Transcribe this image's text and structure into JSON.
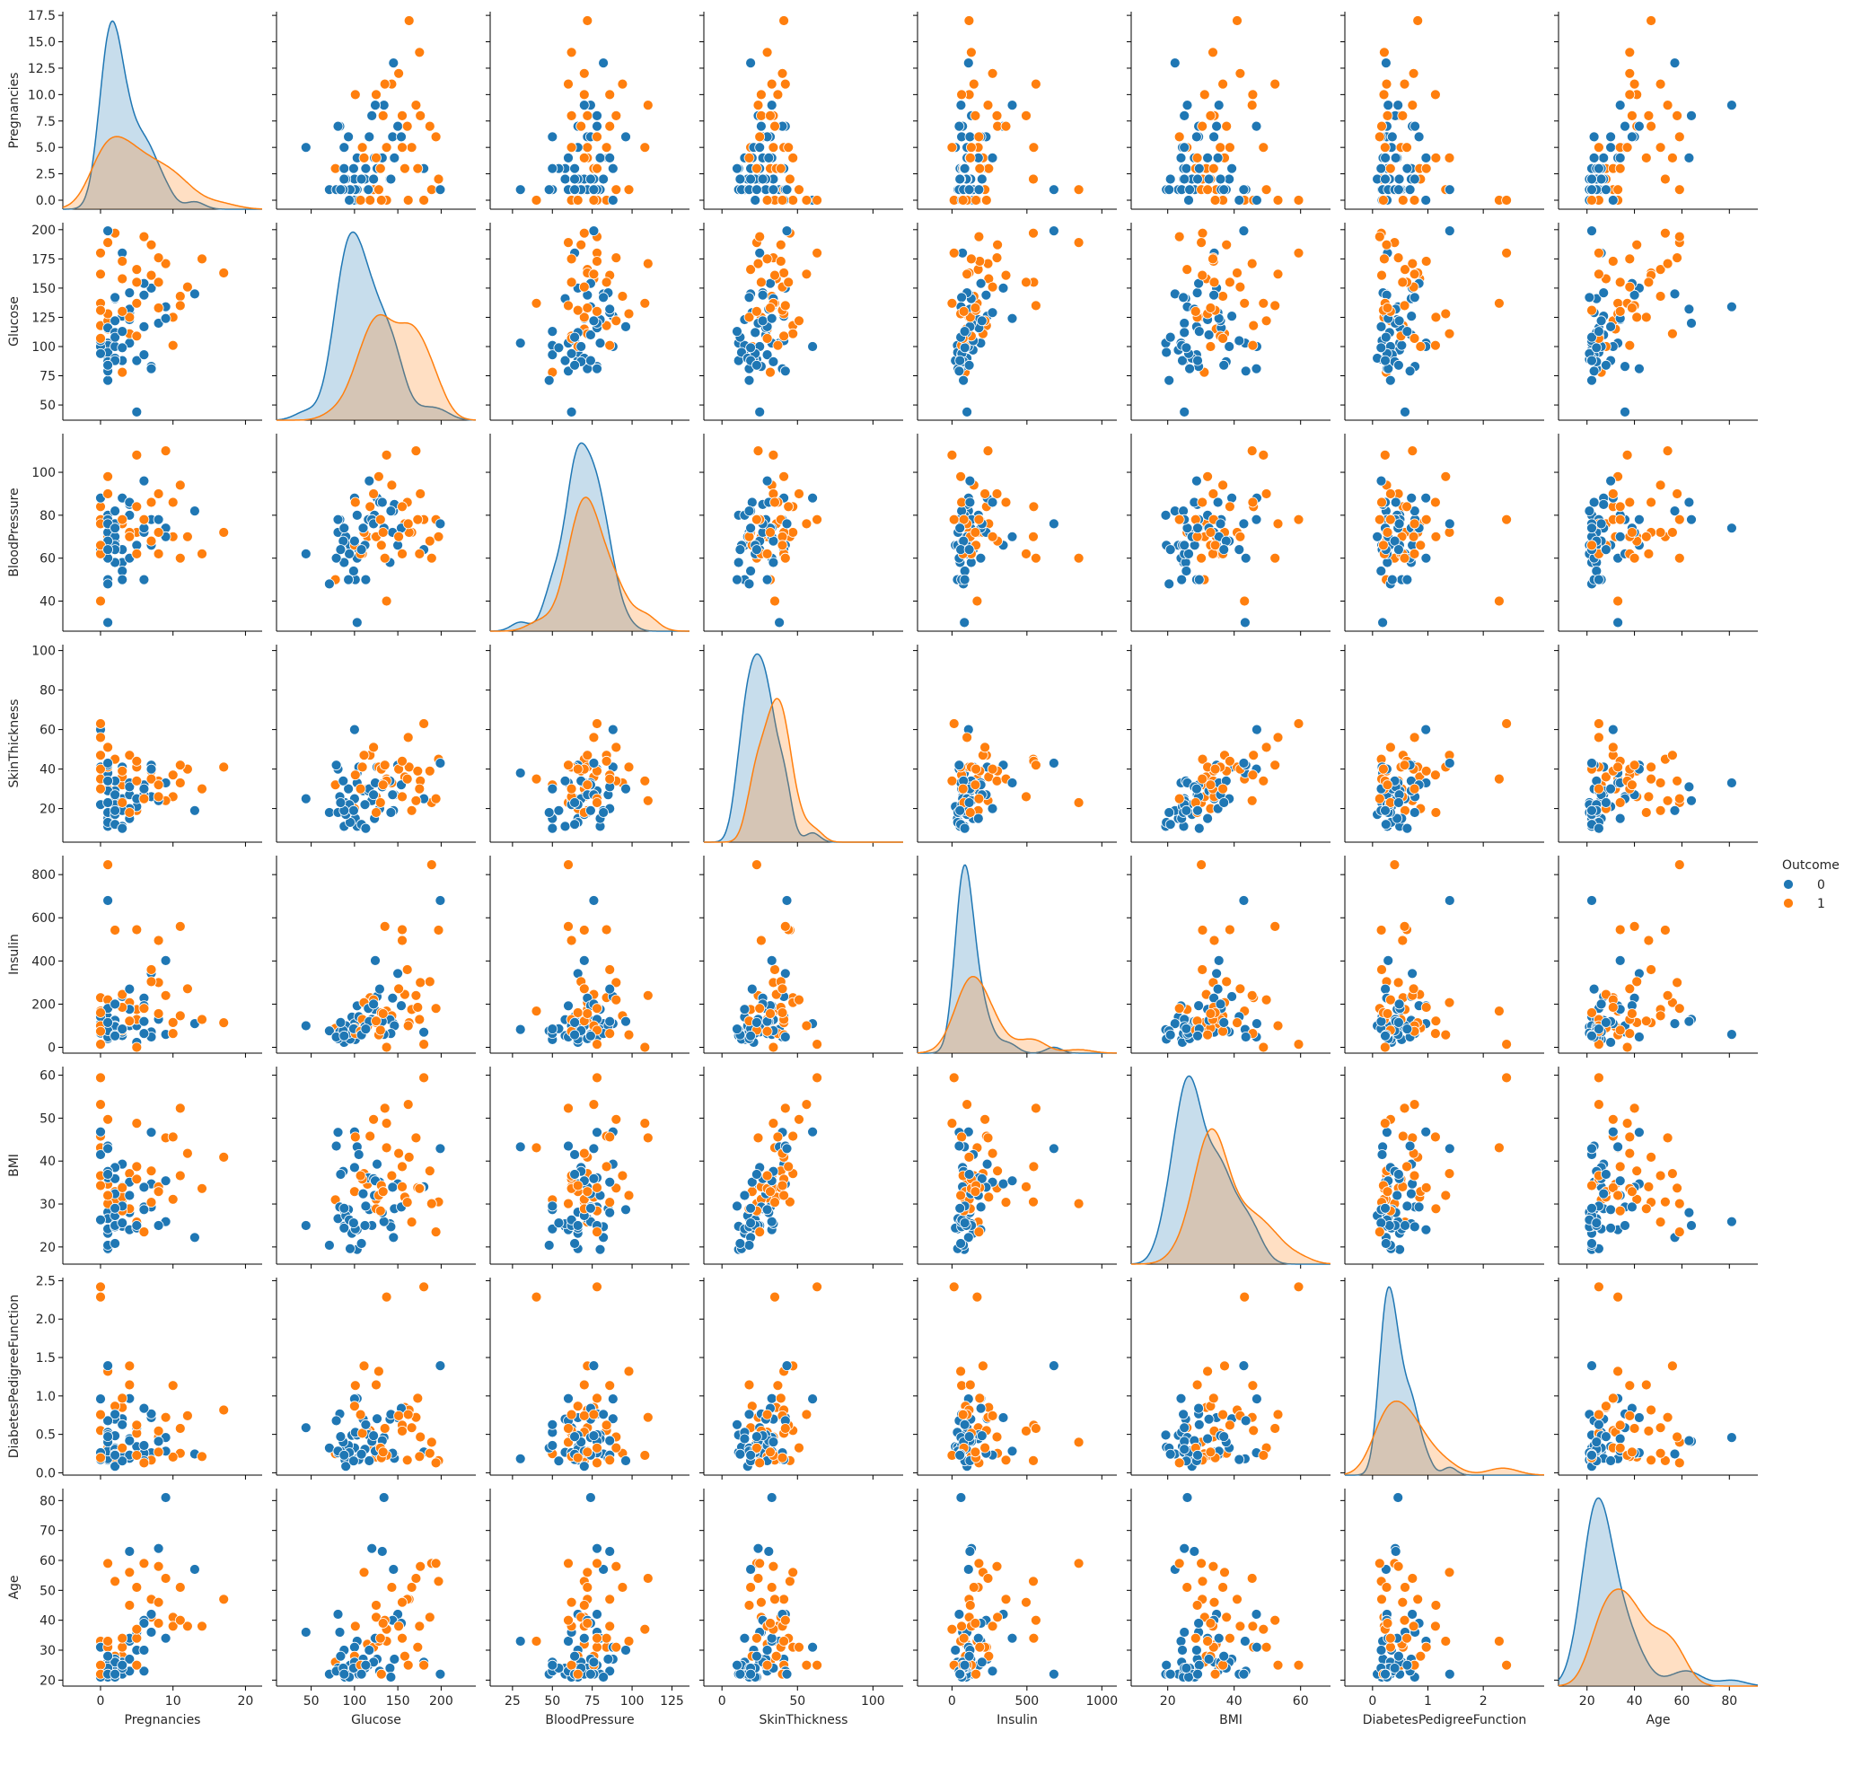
{
  "chart_data": {
    "type": "scatter",
    "title": "",
    "subtype": "pairplot",
    "variables": [
      "Pregnancies",
      "Glucose",
      "BloodPressure",
      "SkinThickness",
      "Insulin",
      "BMI",
      "DiabetesPedigreeFunction",
      "Age"
    ],
    "hue": "Outcome",
    "legend": {
      "title": "Outcome",
      "labels": [
        "0",
        "1"
      ],
      "placement": "center-right"
    },
    "colors": {
      "0": "#1f77b4",
      "1": "#ff7f0e"
    },
    "diagonal": "kde",
    "x_limits": {
      "Pregnancies": [
        -5.2,
        22.3
      ],
      "Glucose": [
        10,
        240
      ],
      "BloodPressure": [
        11,
        136
      ],
      "SkinThickness": [
        -12,
        120
      ],
      "Insulin": [
        -230,
        1100
      ],
      "BMI": [
        9,
        69
      ],
      "DiabetesPedigreeFunction": [
        -0.5,
        3.1
      ],
      "Age": [
        8,
        92
      ]
    },
    "y_limits": {
      "Pregnancies": [
        -0.85,
        17.85
      ],
      "Glucose": [
        37,
        206
      ],
      "BloodPressure": [
        26,
        118
      ],
      "SkinThickness": [
        3,
        103
      ],
      "Insulin": [
        -27,
        888
      ],
      "BMI": [
        16,
        62
      ],
      "DiabetesPedigreeFunction": [
        -0.03,
        2.54
      ],
      "Age": [
        18,
        84
      ]
    },
    "x_ticks": {
      "Pregnancies": [
        "0",
        "10",
        "20"
      ],
      "Glucose": [
        "50",
        "100",
        "150",
        "200"
      ],
      "BloodPressure": [
        "25",
        "50",
        "75",
        "100",
        "125"
      ],
      "SkinThickness": [
        "0",
        "50",
        "100"
      ],
      "Insulin": [
        "0",
        "500",
        "1000"
      ],
      "BMI": [
        "20",
        "40",
        "60"
      ],
      "DiabetesPedigreeFunction": [
        "0",
        "1",
        "2"
      ],
      "Age": [
        "20",
        "40",
        "60",
        "80"
      ]
    },
    "y_ticks": {
      "Pregnancies": [
        "0.0",
        "2.5",
        "5.0",
        "7.5",
        "10.0",
        "12.5",
        "15.0",
        "17.5"
      ],
      "Glucose": [
        "50",
        "75",
        "100",
        "125",
        "150",
        "175",
        "200"
      ],
      "BloodPressure": [
        "40",
        "60",
        "80",
        "100"
      ],
      "SkinThickness": [
        "20",
        "40",
        "60",
        "80",
        "100"
      ],
      "Insulin": [
        "0",
        "200",
        "400",
        "600",
        "800"
      ],
      "BMI": [
        "20",
        "30",
        "40",
        "50",
        "60"
      ],
      "DiabetesPedigreeFunction": [
        "0.0",
        "0.5",
        "1.0",
        "1.5",
        "2.0",
        "2.5"
      ],
      "Age": [
        "20",
        "30",
        "40",
        "50",
        "60",
        "70",
        "80"
      ]
    },
    "columns": [
      "Pregnancies",
      "Glucose",
      "BloodPressure",
      "SkinThickness",
      "Insulin",
      "BMI",
      "DiabetesPedigreeFunction",
      "Age",
      "Outcome"
    ],
    "rows": [
      [
        1,
        89,
        66,
        23,
        94,
        28.1,
        0.167,
        21,
        0
      ],
      [
        0,
        137,
        40,
        35,
        168,
        43.1,
        2.288,
        33,
        1
      ],
      [
        3,
        78,
        50,
        32,
        88,
        31.0,
        0.248,
        26,
        1
      ],
      [
        2,
        197,
        70,
        45,
        543,
        30.5,
        0.158,
        53,
        1
      ],
      [
        1,
        189,
        60,
        23,
        846,
        30.1,
        0.398,
        59,
        1
      ],
      [
        5,
        166,
        72,
        19,
        175,
        25.8,
        0.587,
        51,
        1
      ],
      [
        0,
        118,
        84,
        47,
        230,
        45.8,
        0.551,
        31,
        1
      ],
      [
        1,
        103,
        30,
        38,
        83,
        43.3,
        0.183,
        33,
        0
      ],
      [
        1,
        115,
        70,
        30,
        96,
        34.6,
        0.529,
        32,
        1
      ],
      [
        3,
        126,
        88,
        41,
        235,
        39.3,
        0.704,
        27,
        0
      ],
      [
        11,
        143,
        94,
        33,
        146,
        36.6,
        0.254,
        51,
        1
      ],
      [
        10,
        125,
        70,
        26,
        115,
        31.1,
        0.205,
        41,
        1
      ],
      [
        1,
        97,
        66,
        15,
        140,
        23.2,
        0.487,
        22,
        0
      ],
      [
        13,
        145,
        82,
        19,
        110,
        22.2,
        0.245,
        57,
        0
      ],
      [
        3,
        158,
        76,
        36,
        245,
        31.6,
        0.851,
        28,
        1
      ],
      [
        3,
        88,
        58,
        11,
        54,
        24.8,
        0.267,
        22,
        0
      ],
      [
        4,
        103,
        60,
        33,
        192,
        24.0,
        0.966,
        33,
        0
      ],
      [
        4,
        111,
        72,
        47,
        207,
        37.1,
        1.39,
        56,
        1
      ],
      [
        3,
        180,
        64,
        25,
        70,
        34.0,
        0.271,
        26,
        0
      ],
      [
        9,
        171,
        110,
        24,
        240,
        45.4,
        0.721,
        54,
        1
      ],
      [
        1,
        103,
        80,
        11,
        82,
        19.4,
        0.491,
        22,
        0
      ],
      [
        1,
        101,
        50,
        15,
        36,
        24.2,
        0.526,
        26,
        0
      ],
      [
        5,
        88,
        66,
        21,
        23,
        24.4,
        0.342,
        30,
        0
      ],
      [
        8,
        176,
        90,
        34,
        300,
        33.7,
        0.467,
        58,
        1
      ],
      [
        7,
        150,
        66,
        42,
        342,
        34.7,
        0.718,
        42,
        0
      ],
      [
        7,
        187,
        68,
        39,
        304,
        37.7,
        0.254,
        41,
        1
      ],
      [
        0,
        100,
        88,
        60,
        110,
        46.8,
        0.962,
        31,
        0
      ],
      [
        0,
        105,
        64,
        41,
        142,
        41.5,
        0.173,
        22,
        0
      ],
      [
        2,
        141,
        58,
        34,
        128,
        25.4,
        0.699,
        24,
        0
      ],
      [
        1,
        95,
        66,
        13,
        38,
        19.6,
        0.334,
        25,
        0
      ],
      [
        4,
        146,
        85,
        27,
        100,
        28.9,
        0.189,
        27,
        0
      ],
      [
        2,
        100,
        66,
        20,
        90,
        32.9,
        0.867,
        28,
        1
      ],
      [
        4,
        129,
        86,
        20,
        270,
        35.1,
        0.231,
        23,
        0
      ],
      [
        7,
        83,
        78,
        26,
        71,
        29.3,
        0.767,
        36,
        0
      ],
      [
        2,
        110,
        74,
        29,
        125,
        32.4,
        0.698,
        27,
        0
      ],
      [
        2,
        100,
        68,
        25,
        71,
        38.5,
        0.324,
        26,
        0
      ],
      [
        4,
        123,
        80,
        15,
        176,
        32.0,
        0.443,
        34,
        0
      ],
      [
        7,
        81,
        78,
        40,
        48,
        46.7,
        0.261,
        42,
        0
      ],
      [
        2,
        142,
        82,
        18,
        64,
        24.7,
        0.761,
        21,
        0
      ],
      [
        6,
        144,
        72,
        27,
        228,
        33.9,
        0.255,
        40,
        0
      ],
      [
        1,
        71,
        48,
        18,
        76,
        20.4,
        0.323,
        22,
        0
      ],
      [
        6,
        93,
        50,
        30,
        64,
        28.7,
        0.356,
        23,
        0
      ],
      [
        1,
        122,
        90,
        51,
        220,
        49.7,
        0.325,
        31,
        1
      ],
      [
        1,
        81,
        72,
        18,
        40,
        26.6,
        0.283,
        24,
        0
      ],
      [
        9,
        134,
        74,
        33,
        60,
        25.9,
        0.46,
        81,
        0
      ],
      [
        17,
        163,
        72,
        41,
        114,
        40.9,
        0.817,
        47,
        1
      ],
      [
        0,
        180,
        78,
        63,
        14,
        59.4,
        2.42,
        25,
        1
      ],
      [
        5,
        44,
        62,
        25,
        100,
        25.0,
        0.587,
        36,
        0
      ],
      [
        2,
        90,
        70,
        17,
        100,
        27.3,
        0.085,
        22,
        0
      ],
      [
        0,
        94,
        62,
        22,
        66,
        26.3,
        0.262,
        21,
        0
      ],
      [
        1,
        116,
        78,
        29,
        180,
        36.1,
        0.496,
        25,
        0
      ],
      [
        5,
        109,
        62,
        41,
        129,
        35.8,
        0.514,
        25,
        1
      ],
      [
        8,
        120,
        78,
        24,
        130,
        25.0,
        0.409,
        64,
        0
      ],
      [
        10,
        101,
        86,
        37,
        64,
        45.6,
        1.136,
        38,
        1
      ],
      [
        6,
        154,
        74,
        32,
        193,
        29.3,
        0.839,
        39,
        0
      ],
      [
        3,
        173,
        78,
        39,
        185,
        33.8,
        0.97,
        31,
        1
      ],
      [
        12,
        151,
        70,
        40,
        271,
        41.8,
        0.742,
        38,
        1
      ],
      [
        2,
        112,
        66,
        22,
        96,
        25.0,
        0.307,
        24,
        0
      ],
      [
        4,
        132,
        86,
        31,
        120,
        28.0,
        0.419,
        63,
        0
      ],
      [
        7,
        161,
        86,
        35,
        360,
        30.4,
        0.165,
        47,
        1
      ],
      [
        5,
        155,
        84,
        44,
        545,
        38.7,
        0.619,
        34,
        1
      ],
      [
        0,
        162,
        76,
        56,
        100,
        53.2,
        0.759,
        25,
        1
      ],
      [
        8,
        155,
        62,
        26,
        495,
        34.0,
        0.543,
        46,
        1
      ],
      [
        1,
        128,
        98,
        41,
        58,
        32.0,
        1.321,
        33,
        1
      ],
      [
        3,
        99,
        54,
        19,
        86,
        25.6,
        0.154,
        24,
        0
      ],
      [
        14,
        175,
        62,
        30,
        129,
        33.6,
        0.212,
        38,
        1
      ],
      [
        6,
        117,
        96,
        30,
        120,
        28.7,
        0.157,
        30,
        0
      ],
      [
        2,
        122,
        76,
        27,
        200,
        35.9,
        0.483,
        26,
        0
      ],
      [
        1,
        79,
        60,
        42,
        48,
        43.5,
        0.678,
        23,
        0
      ],
      [
        9,
        124,
        70,
        33,
        402,
        35.4,
        0.282,
        34,
        0
      ],
      [
        6,
        194,
        78,
        25,
        180,
        23.5,
        0.129,
        59,
        1
      ],
      [
        4,
        125,
        70,
        18,
        122,
        28.9,
        1.144,
        45,
        1
      ],
      [
        1,
        87,
        68,
        34,
        77,
        37.6,
        0.401,
        24,
        0
      ],
      [
        0,
        107,
        62,
        30,
        74,
        36.6,
        0.757,
        25,
        1
      ],
      [
        3,
        130,
        78,
        23,
        79,
        28.4,
        0.323,
        34,
        1
      ],
      [
        2,
        108,
        64,
        12,
        58,
        20.8,
        0.242,
        22,
        0
      ],
      [
        5,
        137,
        108,
        34,
        0.1,
        48.8,
        0.227,
        37,
        1
      ],
      [
        0,
        131,
        66,
        40,
        160,
        34.3,
        0.196,
        22,
        1
      ],
      [
        1,
        199,
        76,
        43,
        680,
        42.9,
        1.394,
        22,
        0
      ],
      [
        3,
        113,
        50,
        10,
        85,
        29.5,
        0.626,
        25,
        0
      ],
      [
        11,
        135,
        60,
        42,
        560,
        52.3,
        0.578,
        40,
        1
      ],
      [
        2,
        88,
        74,
        19,
        53,
        29.0,
        0.229,
        22,
        0
      ],
      [
        8,
        133,
        72,
        32,
        156,
        32.9,
        0.27,
        39,
        1
      ],
      [
        1,
        84,
        64,
        23,
        115,
        36.9,
        0.471,
        28,
        0
      ]
    ]
  }
}
